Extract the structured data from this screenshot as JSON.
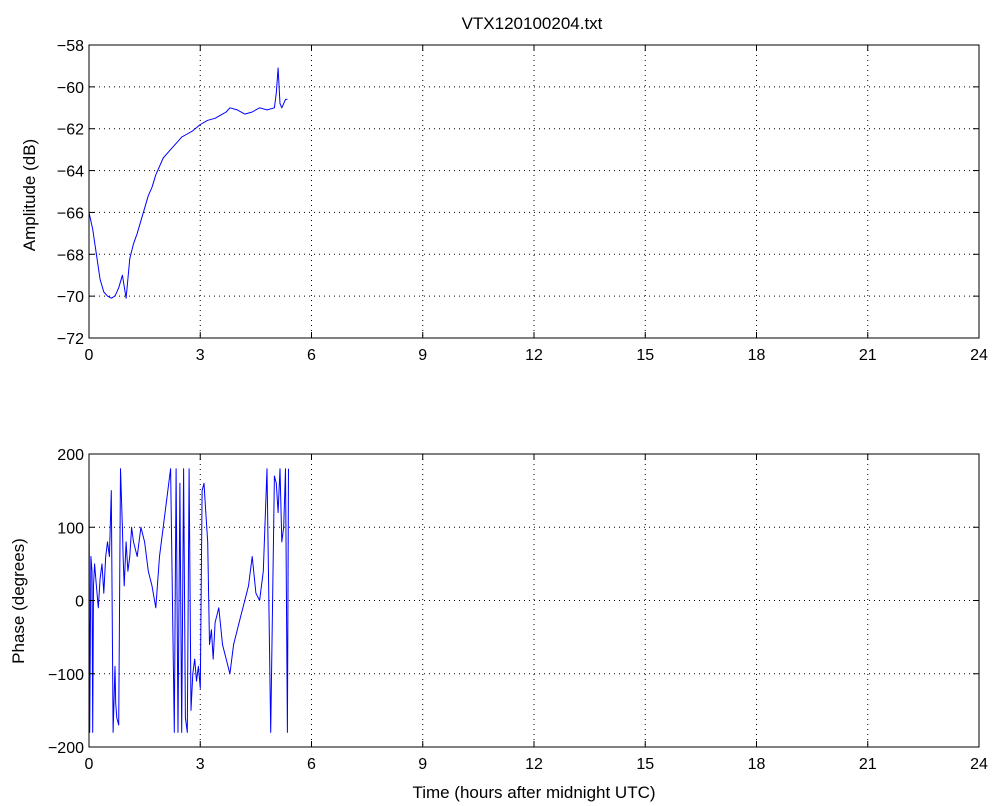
{
  "chart_data": [
    {
      "type": "line",
      "title": "VTX120100204.txt",
      "xlabel": "",
      "ylabel": "Amplitude (dB)",
      "xlim": [
        0,
        24
      ],
      "ylim": [
        -72,
        -58
      ],
      "xticks": [
        0,
        3,
        6,
        9,
        12,
        15,
        18,
        21,
        24
      ],
      "yticks": [
        -72,
        -70,
        -68,
        -66,
        -64,
        -62,
        -60,
        -58
      ],
      "grid": true,
      "color": "#0000ff",
      "series": [
        {
          "x": [
            0.0,
            0.1,
            0.2,
            0.3,
            0.4,
            0.5,
            0.6,
            0.7,
            0.8,
            0.9,
            1.0,
            1.1,
            1.2,
            1.3,
            1.4,
            1.5,
            1.6,
            1.7,
            1.8,
            1.9,
            2.0,
            2.2,
            2.4,
            2.5,
            2.6,
            2.8,
            3.0,
            3.2,
            3.4,
            3.5,
            3.6,
            3.7,
            3.8,
            4.0,
            4.2,
            4.4,
            4.6,
            4.8,
            5.0,
            5.05,
            5.1,
            5.15,
            5.2,
            5.3,
            5.35
          ],
          "y": [
            -66.0,
            -66.8,
            -68.0,
            -69.2,
            -69.8,
            -70.0,
            -70.1,
            -70.0,
            -69.6,
            -69.0,
            -70.1,
            -68.2,
            -67.5,
            -67.0,
            -66.4,
            -65.8,
            -65.2,
            -64.8,
            -64.2,
            -63.8,
            -63.4,
            -63.0,
            -62.6,
            -62.4,
            -62.3,
            -62.1,
            -61.8,
            -61.6,
            -61.5,
            -61.4,
            -61.3,
            -61.2,
            -61.0,
            -61.1,
            -61.3,
            -61.2,
            -61.0,
            -61.1,
            -61.0,
            -60.3,
            -59.1,
            -60.8,
            -61.0,
            -60.6,
            -60.6
          ]
        }
      ]
    },
    {
      "type": "line",
      "title": "",
      "xlabel": "Time (hours after midnight UTC)",
      "ylabel": "Phase (degrees)",
      "xlim": [
        0,
        24
      ],
      "ylim": [
        -200,
        200
      ],
      "xticks": [
        0,
        3,
        6,
        9,
        12,
        15,
        18,
        21,
        24
      ],
      "yticks": [
        -200,
        -100,
        0,
        100,
        200
      ],
      "grid": true,
      "color": "#0000ff",
      "series": [
        {
          "x": [
            0.0,
            0.02,
            0.05,
            0.08,
            0.1,
            0.12,
            0.15,
            0.2,
            0.25,
            0.3,
            0.35,
            0.4,
            0.45,
            0.5,
            0.55,
            0.6,
            0.65,
            0.7,
            0.72,
            0.75,
            0.8,
            0.85,
            0.9,
            0.92,
            0.95,
            1.0,
            1.05,
            1.1,
            1.15,
            1.2,
            1.3,
            1.4,
            1.5,
            1.6,
            1.7,
            1.8,
            1.9,
            2.0,
            2.1,
            2.2,
            2.3,
            2.35,
            2.4,
            2.45,
            2.5,
            2.55,
            2.6,
            2.65,
            2.7,
            2.75,
            2.8,
            2.85,
            2.9,
            2.95,
            3.0,
            3.05,
            3.1,
            3.15,
            3.2,
            3.25,
            3.3,
            3.35,
            3.4,
            3.5,
            3.6,
            3.7,
            3.8,
            3.9,
            4.0,
            4.1,
            4.2,
            4.3,
            4.4,
            4.5,
            4.6,
            4.7,
            4.8,
            4.9,
            5.0,
            5.05,
            5.1,
            5.15,
            5.2,
            5.25,
            5.3,
            5.35,
            5.38
          ],
          "y": [
            180,
            -180,
            60,
            40,
            -180,
            20,
            50,
            20,
            -10,
            30,
            50,
            10,
            60,
            80,
            60,
            150,
            -180,
            -90,
            -140,
            -160,
            -170,
            180,
            100,
            60,
            20,
            80,
            40,
            60,
            100,
            80,
            60,
            100,
            80,
            40,
            20,
            -10,
            60,
            100,
            140,
            180,
            -180,
            180,
            -180,
            160,
            -180,
            180,
            -160,
            -180,
            180,
            -150,
            -100,
            -80,
            -110,
            -90,
            -120,
            150,
            160,
            120,
            80,
            -60,
            -40,
            -80,
            -30,
            -10,
            -60,
            -80,
            -100,
            -60,
            -40,
            -20,
            0,
            20,
            60,
            10,
            0,
            40,
            180,
            -180,
            170,
            160,
            120,
            180,
            80,
            100,
            180,
            -180,
            180
          ]
        }
      ]
    }
  ]
}
